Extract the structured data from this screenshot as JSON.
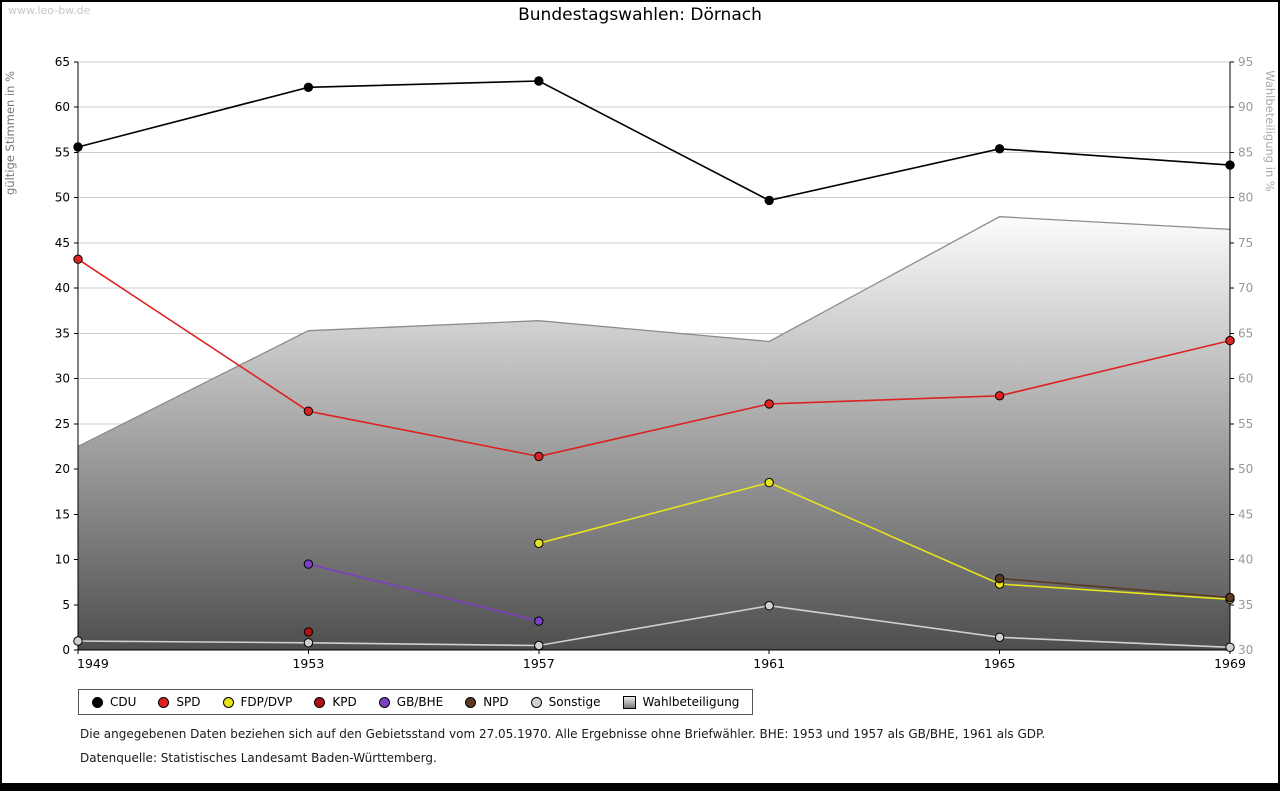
{
  "watermark": "www.leo-bw.de",
  "title": "Bundestagswahlen: Dörnach",
  "footnotes": {
    "line1": "Die angegebenen Daten beziehen sich auf den Gebietsstand vom 27.05.1970. Alle Ergebnisse ohne Briefwähler. BHE: 1953 und 1957 als GB/BHE, 1961 als GDP.",
    "line2": "Datenquelle: Statistisches Landesamt Baden-Württemberg."
  },
  "chart_data": {
    "type": "line",
    "title": "Bundestagswahlen: Dörnach",
    "x": [
      1949,
      1953,
      1957,
      1961,
      1965,
      1969
    ],
    "left_axis": {
      "label": "gültige Stimmen in %",
      "min": 0,
      "max": 65,
      "tick_step": 5
    },
    "right_axis": {
      "label": "Wahlbeteiligung in %",
      "min": 30,
      "max": 95,
      "tick_step": 5
    },
    "grid": true,
    "legend_position": "bottom",
    "colors": {
      "grid": "#cccccc",
      "area_top": "#fcfcfc",
      "area_bottom": "#4e4e4e",
      "axis": "#000000",
      "right_tick_text": "#999999",
      "left_axis_title_text": "#777777",
      "right_axis_title_text": "#aaaaaa"
    },
    "series": [
      {
        "name": "CDU",
        "color": "#000000",
        "axis": "left",
        "points": [
          [
            1949,
            55.6
          ],
          [
            1953,
            62.2
          ],
          [
            1957,
            62.9
          ],
          [
            1961,
            49.7
          ],
          [
            1965,
            55.4
          ],
          [
            1969,
            53.6
          ]
        ]
      },
      {
        "name": "SPD",
        "color": "#dd2222",
        "axis": "left",
        "points": [
          [
            1949,
            43.2
          ],
          [
            1953,
            26.4
          ],
          [
            1957,
            21.4
          ],
          [
            1961,
            27.2
          ],
          [
            1965,
            28.1
          ],
          [
            1969,
            34.2
          ]
        ]
      },
      {
        "name": "FDP/DVP",
        "color": "#e6e41c",
        "axis": "left",
        "points": [
          [
            1957,
            11.8
          ],
          [
            1961,
            18.5
          ],
          [
            1965,
            7.3
          ],
          [
            1969,
            5.6
          ]
        ]
      },
      {
        "name": "KPD",
        "color": "#b01010",
        "axis": "left",
        "points": [
          [
            1953,
            2.0
          ]
        ]
      },
      {
        "name": "GB/BHE",
        "color": "#7d3fc4",
        "axis": "left",
        "points": [
          [
            1953,
            9.5
          ],
          [
            1957,
            3.2
          ]
        ]
      },
      {
        "name": "NPD",
        "color": "#5a3a24",
        "axis": "left",
        "points": [
          [
            1965,
            7.9
          ],
          [
            1969,
            5.8
          ]
        ]
      },
      {
        "name": "Sonstige",
        "color": "#d0d0d0",
        "axis": "left",
        "points": [
          [
            1949,
            1.0
          ],
          [
            1953,
            0.8
          ],
          [
            1957,
            0.5
          ],
          [
            1961,
            4.9
          ],
          [
            1965,
            1.4
          ],
          [
            1969,
            0.3
          ]
        ]
      },
      {
        "name": "Wahlbeteiligung",
        "kind": "area",
        "color": "#8c8c8c",
        "axis": "right",
        "points": [
          [
            1949,
            52.5
          ],
          [
            1953,
            65.3
          ],
          [
            1957,
            66.4
          ],
          [
            1961,
            64.1
          ],
          [
            1965,
            77.9
          ],
          [
            1969,
            76.5
          ]
        ]
      }
    ]
  }
}
